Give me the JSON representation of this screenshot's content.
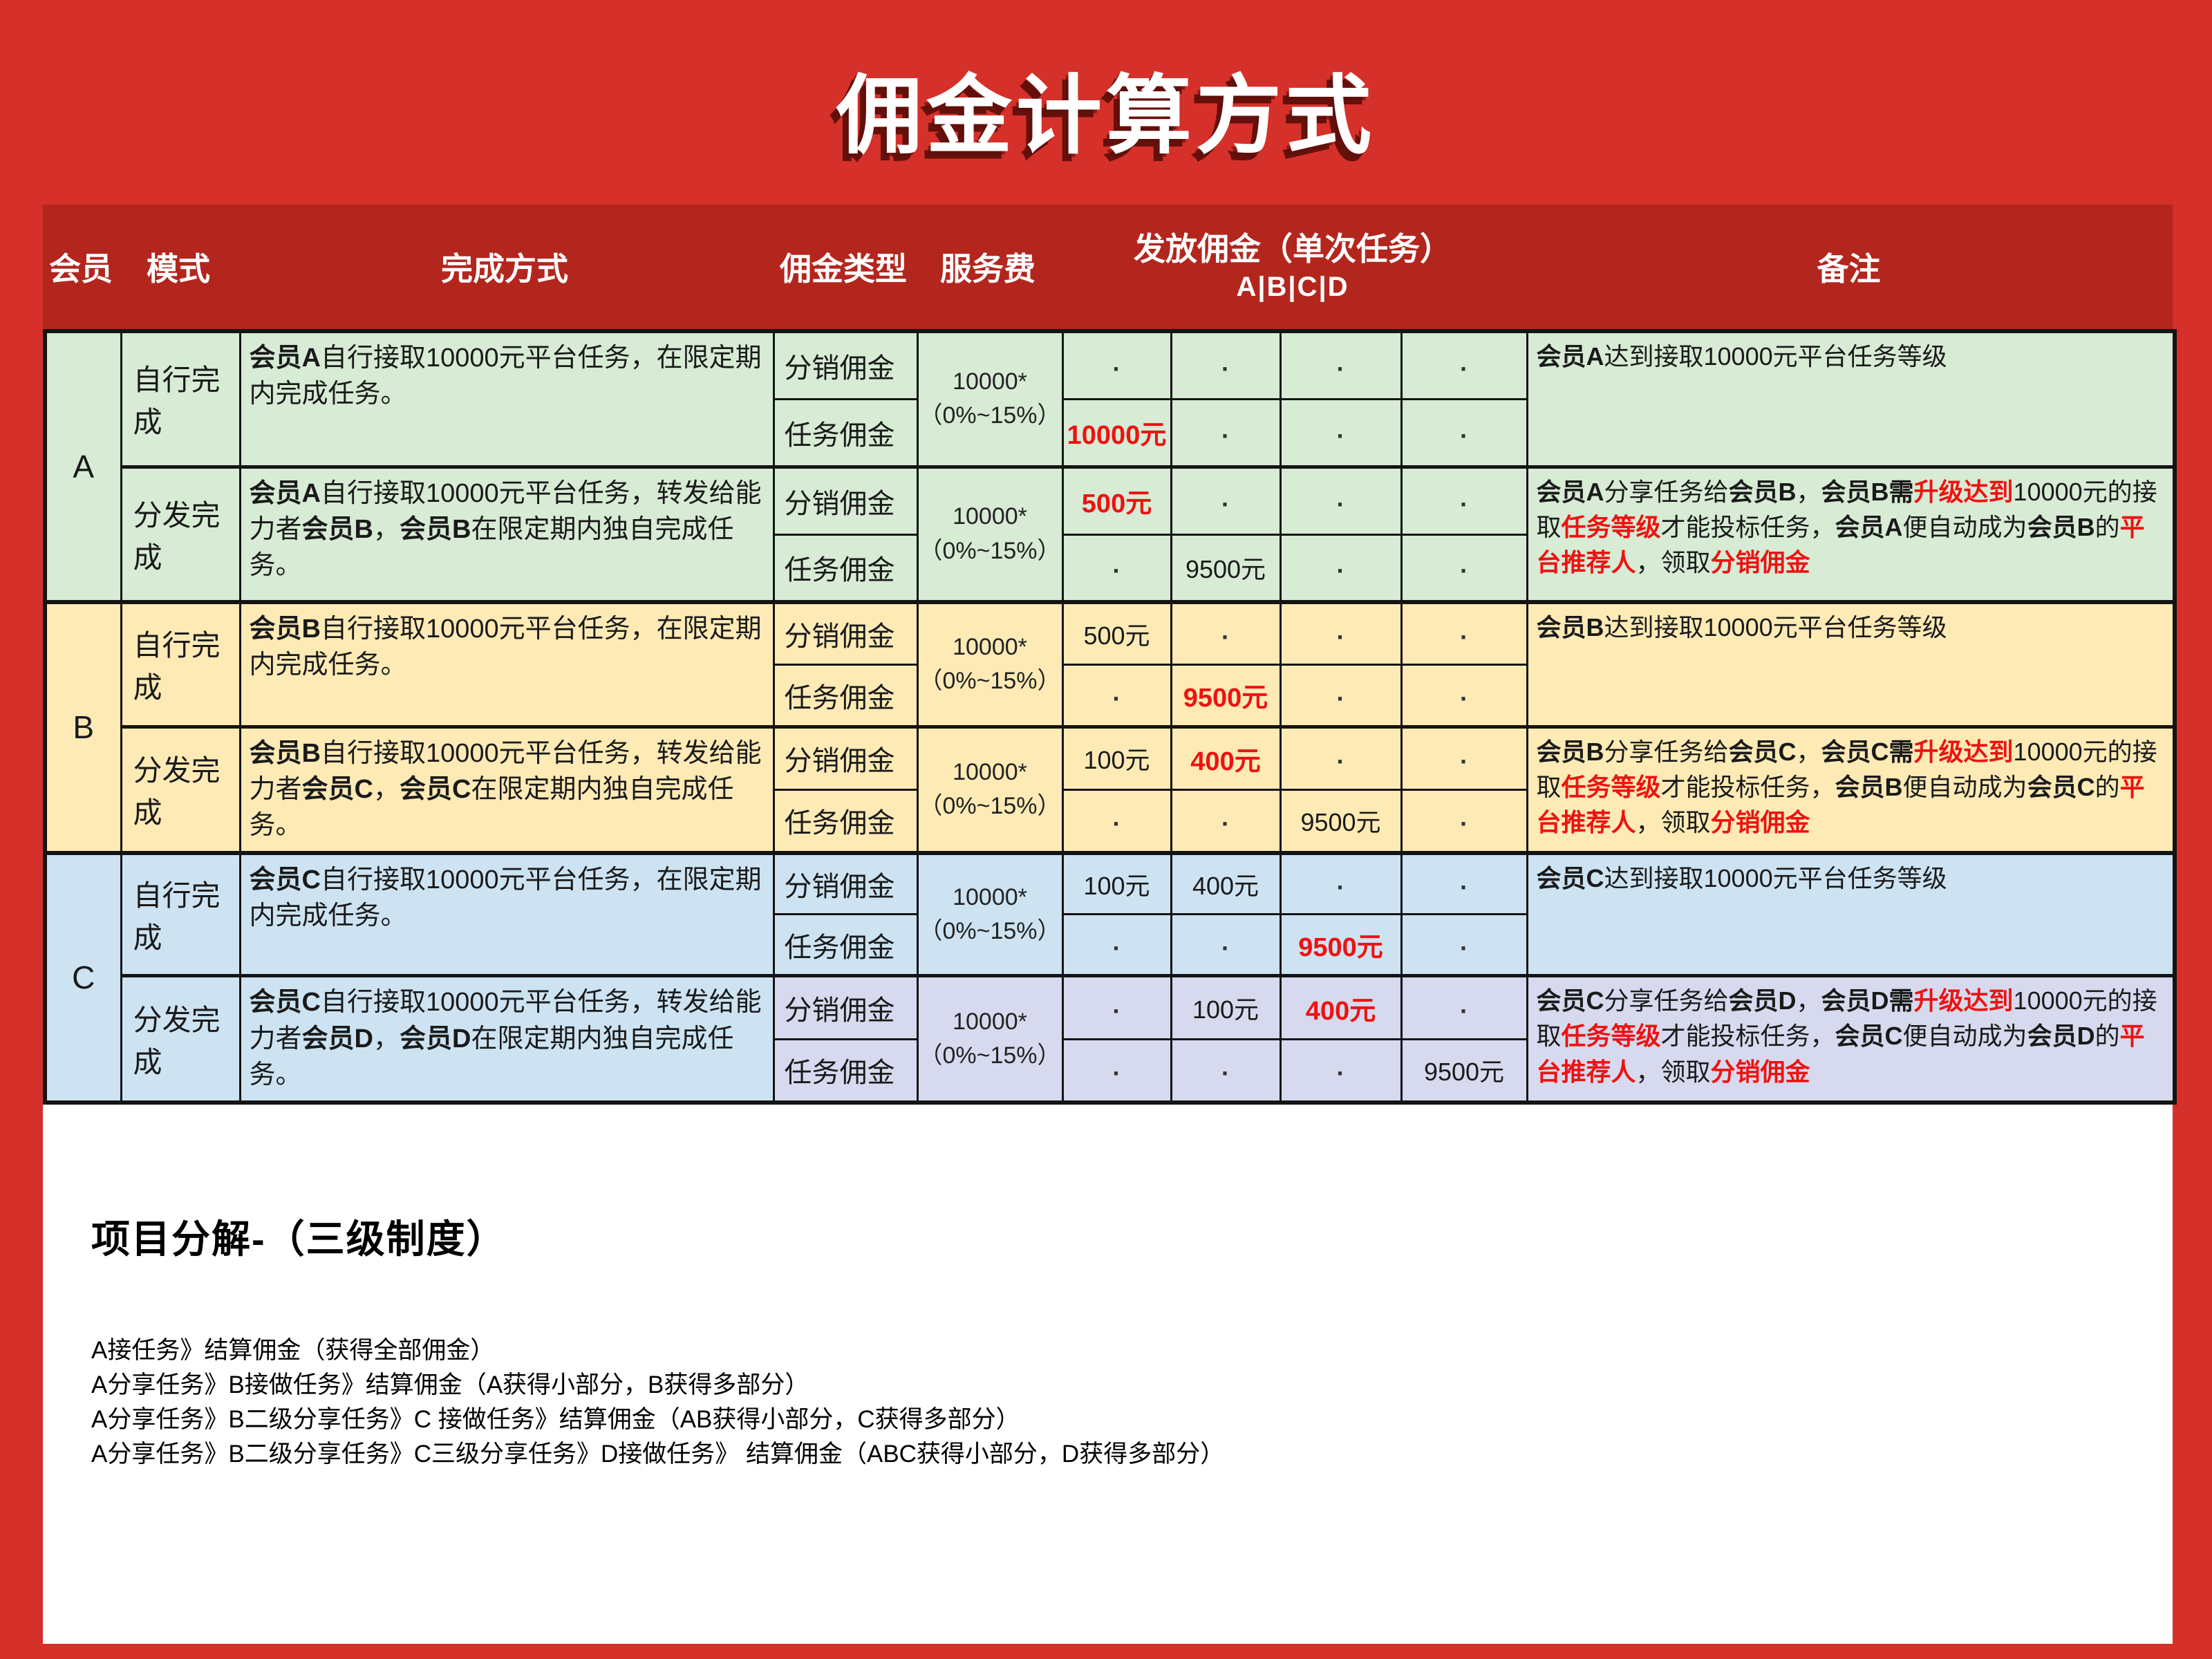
{
  "title": "佣金计算方式",
  "colors": {
    "page_red": "#d5302a",
    "header_red": "#b3261e",
    "section_a_green": "#d7ebd5",
    "section_b_yellow": "#fdeab5",
    "section_c_blue": "#cde3f2",
    "section_c_lavender": "#d7daee",
    "highlight_red": "#ee1211",
    "border_black": "#141414",
    "title_white": "#ffffff"
  },
  "table": {
    "headers": {
      "member": "会员",
      "mode": "模式",
      "method": "完成方式",
      "commission_type": "佣金类型",
      "service_fee": "服务费",
      "payout_line1": "发放佣金（单次任务）",
      "payout_line2": "A|B|C|D",
      "remark": "备注"
    },
    "sections": [
      {
        "member": "A",
        "modes": [
          {
            "mode": "自行完成",
            "desc": [
              {
                "t": "会员A",
                "s": "b"
              },
              {
                "t": "自行接取10000元平台任务，在限定期内完成任务。"
              }
            ],
            "fee": [
              "10000*",
              "（0%~15%）"
            ],
            "rows": [
              {
                "type": "分销佣金",
                "payouts": [
                  [
                    {
                      "t": "·",
                      "s": "dot"
                    }
                  ],
                  [
                    {
                      "t": "·",
                      "s": "dot"
                    }
                  ],
                  [
                    {
                      "t": "·",
                      "s": "dot"
                    }
                  ],
                  [
                    {
                      "t": "·",
                      "s": "dot"
                    }
                  ]
                ]
              },
              {
                "type": "任务佣金",
                "payouts": [
                  [
                    {
                      "t": "10000元",
                      "s": "rv"
                    }
                  ],
                  [
                    {
                      "t": "·",
                      "s": "dot"
                    }
                  ],
                  [
                    {
                      "t": "·",
                      "s": "dot"
                    }
                  ],
                  [
                    {
                      "t": "·",
                      "s": "dot"
                    }
                  ]
                ]
              }
            ],
            "remark": [
              {
                "t": "会员A",
                "s": "b"
              },
              {
                "t": "达到接取10000元平台任务等级"
              }
            ]
          },
          {
            "mode": "分发完成",
            "desc": [
              {
                "t": "会员A",
                "s": "b"
              },
              {
                "t": "自行接取10000元平台任务，转发给能力者"
              },
              {
                "t": "会员B",
                "s": "b"
              },
              {
                "t": "，"
              },
              {
                "t": "会员B",
                "s": "b"
              },
              {
                "t": "在限定期内独自完成任务。"
              }
            ],
            "fee": [
              "10000*",
              "（0%~15%）"
            ],
            "rows": [
              {
                "type": "分销佣金",
                "payouts": [
                  [
                    {
                      "t": "500元",
                      "s": "rv"
                    }
                  ],
                  [
                    {
                      "t": "·",
                      "s": "dot"
                    }
                  ],
                  [
                    {
                      "t": "·",
                      "s": "dot"
                    }
                  ],
                  [
                    {
                      "t": "·",
                      "s": "dot"
                    }
                  ]
                ]
              },
              {
                "type": "任务佣金",
                "payouts": [
                  [
                    {
                      "t": "·",
                      "s": "dot"
                    }
                  ],
                  [
                    {
                      "t": "9500元"
                    }
                  ],
                  [
                    {
                      "t": "·",
                      "s": "dot"
                    }
                  ],
                  [
                    {
                      "t": "·",
                      "s": "dot"
                    }
                  ]
                ]
              }
            ],
            "remark": [
              {
                "t": "会员A",
                "s": "b"
              },
              {
                "t": "分享任务给"
              },
              {
                "t": "会员B",
                "s": "b"
              },
              {
                "t": "，"
              },
              {
                "t": "会员B需",
                "s": "b"
              },
              {
                "t": "升级达到",
                "s": "rb"
              },
              {
                "t": "10000元的接取"
              },
              {
                "t": "任务等级",
                "s": "rb"
              },
              {
                "t": "才能投标任务，"
              },
              {
                "t": "会员A",
                "s": "b"
              },
              {
                "t": "便自动成为"
              },
              {
                "t": "会员B",
                "s": "b"
              },
              {
                "t": "的"
              },
              {
                "t": "平台推荐人",
                "s": "rb"
              },
              {
                "t": "，领取"
              },
              {
                "t": "分销佣金",
                "s": "rb"
              }
            ]
          }
        ]
      },
      {
        "member": "B",
        "modes": [
          {
            "mode": "自行完成",
            "desc": [
              {
                "t": "会员B",
                "s": "b"
              },
              {
                "t": "自行接取10000元平台任务，在限定期内完成任务。"
              }
            ],
            "fee": [
              "10000*",
              "（0%~15%）"
            ],
            "rows": [
              {
                "type": "分销佣金",
                "payouts": [
                  [
                    {
                      "t": "500元"
                    }
                  ],
                  [
                    {
                      "t": "·",
                      "s": "dot"
                    }
                  ],
                  [
                    {
                      "t": "·",
                      "s": "dot"
                    }
                  ],
                  [
                    {
                      "t": "·",
                      "s": "dot"
                    }
                  ]
                ]
              },
              {
                "type": "任务佣金",
                "payouts": [
                  [
                    {
                      "t": "·",
                      "s": "dot"
                    }
                  ],
                  [
                    {
                      "t": "9500元",
                      "s": "rv"
                    }
                  ],
                  [
                    {
                      "t": "·",
                      "s": "dot"
                    }
                  ],
                  [
                    {
                      "t": "·",
                      "s": "dot"
                    }
                  ]
                ]
              }
            ],
            "remark": [
              {
                "t": "会员B",
                "s": "b"
              },
              {
                "t": "达到接取10000元平台任务等级"
              }
            ]
          },
          {
            "mode": "分发完成",
            "desc": [
              {
                "t": "会员B",
                "s": "b"
              },
              {
                "t": "自行接取10000元平台任务，转发给能力者"
              },
              {
                "t": "会员C",
                "s": "b"
              },
              {
                "t": "，"
              },
              {
                "t": "会员C",
                "s": "b"
              },
              {
                "t": "在限定期内独自完成任务。"
              }
            ],
            "fee": [
              "10000*",
              "（0%~15%）"
            ],
            "rows": [
              {
                "type": "分销佣金",
                "payouts": [
                  [
                    {
                      "t": "100元"
                    }
                  ],
                  [
                    {
                      "t": "400元",
                      "s": "rv"
                    }
                  ],
                  [
                    {
                      "t": "·",
                      "s": "dot"
                    }
                  ],
                  [
                    {
                      "t": "·",
                      "s": "dot"
                    }
                  ]
                ]
              },
              {
                "type": "任务佣金",
                "payouts": [
                  [
                    {
                      "t": "·",
                      "s": "dot"
                    }
                  ],
                  [
                    {
                      "t": "·",
                      "s": "dot"
                    }
                  ],
                  [
                    {
                      "t": "9500元"
                    }
                  ],
                  [
                    {
                      "t": "·",
                      "s": "dot"
                    }
                  ]
                ]
              }
            ],
            "remark": [
              {
                "t": "会员B",
                "s": "b"
              },
              {
                "t": "分享任务给"
              },
              {
                "t": "会员C",
                "s": "b"
              },
              {
                "t": "，"
              },
              {
                "t": "会员C需",
                "s": "b"
              },
              {
                "t": "升级达到",
                "s": "rb"
              },
              {
                "t": "10000元的接取"
              },
              {
                "t": "任务等级",
                "s": "rb"
              },
              {
                "t": "才能投标任务，"
              },
              {
                "t": "会员B",
                "s": "b"
              },
              {
                "t": "便自动成为"
              },
              {
                "t": "会员C",
                "s": "b"
              },
              {
                "t": "的"
              },
              {
                "t": "平台推荐人",
                "s": "rb"
              },
              {
                "t": "，领取"
              },
              {
                "t": "分销佣金",
                "s": "rb"
              }
            ]
          }
        ]
      },
      {
        "member": "C",
        "modes": [
          {
            "mode": "自行完成",
            "desc": [
              {
                "t": "会员C",
                "s": "b"
              },
              {
                "t": "自行接取10000元平台任务，在限定期内完成任务。"
              }
            ],
            "fee": [
              "10000*",
              "（0%~15%）"
            ],
            "rows": [
              {
                "type": "分销佣金",
                "payouts": [
                  [
                    {
                      "t": "100元"
                    }
                  ],
                  [
                    {
                      "t": "400元"
                    }
                  ],
                  [
                    {
                      "t": "·",
                      "s": "dot"
                    }
                  ],
                  [
                    {
                      "t": "·",
                      "s": "dot"
                    }
                  ]
                ]
              },
              {
                "type": "任务佣金",
                "payouts": [
                  [
                    {
                      "t": "·",
                      "s": "dot"
                    }
                  ],
                  [
                    {
                      "t": "·",
                      "s": "dot"
                    }
                  ],
                  [
                    {
                      "t": "9500元",
                      "s": "rv"
                    }
                  ],
                  [
                    {
                      "t": "·",
                      "s": "dot"
                    }
                  ]
                ]
              }
            ],
            "remark": [
              {
                "t": "会员C",
                "s": "b"
              },
              {
                "t": "达到接取10000元平台任务等级"
              }
            ]
          },
          {
            "mode": "分发完成",
            "desc": [
              {
                "t": "会员C",
                "s": "b"
              },
              {
                "t": "自行接取10000元平台任务，转发给能力者"
              },
              {
                "t": "会员D",
                "s": "b"
              },
              {
                "t": "，"
              },
              {
                "t": "会员D",
                "s": "b"
              },
              {
                "t": "在限定期内独自完成任务。"
              }
            ],
            "fee": [
              "10000*",
              "（0%~15%）"
            ],
            "rows": [
              {
                "type": "分销佣金",
                "payouts": [
                  [
                    {
                      "t": "·",
                      "s": "dot"
                    }
                  ],
                  [
                    {
                      "t": "100元"
                    }
                  ],
                  [
                    {
                      "t": "400元",
                      "s": "rv"
                    }
                  ],
                  [
                    {
                      "t": "·",
                      "s": "dot"
                    }
                  ]
                ]
              },
              {
                "type": "任务佣金",
                "payouts": [
                  [
                    {
                      "t": "·",
                      "s": "dot"
                    }
                  ],
                  [
                    {
                      "t": "·",
                      "s": "dot"
                    }
                  ],
                  [
                    {
                      "t": "·",
                      "s": "dot"
                    }
                  ],
                  [
                    {
                      "t": "9500元"
                    }
                  ]
                ]
              }
            ],
            "remark": [
              {
                "t": "会员C",
                "s": "b"
              },
              {
                "t": "分享任务给"
              },
              {
                "t": "会员D",
                "s": "b"
              },
              {
                "t": "，"
              },
              {
                "t": "会员D需",
                "s": "b"
              },
              {
                "t": "升级达到",
                "s": "rb"
              },
              {
                "t": "10000元的接取"
              },
              {
                "t": "任务等级",
                "s": "rb"
              },
              {
                "t": "才能投标任务，"
              },
              {
                "t": "会员C",
                "s": "b"
              },
              {
                "t": "便自动成为"
              },
              {
                "t": "会员D",
                "s": "b"
              },
              {
                "t": "的"
              },
              {
                "t": "平台推荐人",
                "s": "rb"
              },
              {
                "t": "，领取"
              },
              {
                "t": "分销佣金",
                "s": "rb"
              }
            ]
          }
        ]
      }
    ]
  },
  "footer": {
    "heading": "项目分解-（三级制度）",
    "lines": [
      "A接任务》结算佣金（获得全部佣金）",
      "A分享任务》B接做任务》结算佣金（A获得小部分，B获得多部分）",
      "A分享任务》B二级分享任务》C 接做任务》结算佣金（AB获得小部分，C获得多部分）",
      "A分享任务》B二级分享任务》C三级分享任务》D接做任务》 结算佣金（ABC获得小部分，D获得多部分）"
    ]
  }
}
